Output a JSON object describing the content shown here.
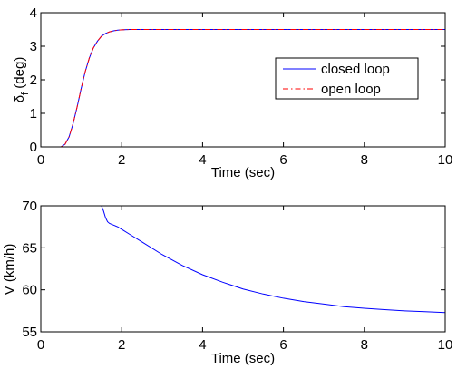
{
  "chart_data": [
    {
      "type": "line",
      "xlabel": "Time (sec)",
      "ylabel": "δ_f (deg)",
      "ylabel_main": "δ",
      "ylabel_sub": "f",
      "ylabel_rest": " (deg)",
      "xlim": [
        0,
        10
      ],
      "ylim": [
        0,
        4
      ],
      "xticks": [
        0,
        2,
        4,
        6,
        8,
        10
      ],
      "yticks": [
        0,
        1,
        2,
        3,
        4
      ],
      "grid": false,
      "legend": {
        "position": "right",
        "entries": [
          "closed loop",
          "open loop"
        ]
      },
      "series": [
        {
          "name": "closed loop",
          "color": "#0000ff",
          "style": "solid",
          "x": [
            0,
            0.5,
            0.6,
            0.7,
            0.8,
            0.9,
            1.0,
            1.1,
            1.2,
            1.3,
            1.4,
            1.5,
            1.6,
            1.7,
            1.8,
            1.9,
            2.0,
            2.2,
            2.5,
            3.0,
            10
          ],
          "y": [
            0,
            0,
            0.08,
            0.3,
            0.7,
            1.2,
            1.75,
            2.25,
            2.65,
            2.95,
            3.15,
            3.3,
            3.38,
            3.43,
            3.46,
            3.48,
            3.49,
            3.5,
            3.5,
            3.5,
            3.5
          ]
        },
        {
          "name": "open loop",
          "color": "#ff0000",
          "style": "dashdot",
          "x": [
            0,
            0.5,
            0.6,
            0.7,
            0.8,
            0.9,
            1.0,
            1.1,
            1.2,
            1.3,
            1.4,
            1.5,
            1.6,
            1.7,
            1.8,
            1.9,
            2.0,
            2.2,
            2.5,
            3.0,
            10
          ],
          "y": [
            0,
            0,
            0.08,
            0.3,
            0.7,
            1.2,
            1.75,
            2.25,
            2.65,
            2.95,
            3.15,
            3.3,
            3.38,
            3.43,
            3.46,
            3.48,
            3.49,
            3.5,
            3.5,
            3.5,
            3.5
          ]
        }
      ]
    },
    {
      "type": "line",
      "xlabel": "Time (sec)",
      "ylabel": "V (km/h)",
      "xlim": [
        0,
        10
      ],
      "ylim": [
        55,
        70
      ],
      "xticks": [
        0,
        2,
        4,
        6,
        8,
        10
      ],
      "yticks": [
        55,
        60,
        65,
        70
      ],
      "grid": false,
      "series": [
        {
          "color": "#0000ff",
          "style": "solid",
          "x": [
            0,
            1.5,
            1.55,
            1.6,
            1.65,
            1.7,
            1.8,
            1.9,
            2.0,
            2.2,
            2.5,
            3.0,
            3.5,
            4.0,
            4.5,
            5.0,
            5.5,
            6.0,
            6.5,
            7.0,
            7.5,
            8.0,
            8.5,
            9.0,
            9.5,
            10
          ],
          "y": [
            70,
            70,
            69.4,
            68.6,
            68.1,
            67.9,
            67.7,
            67.5,
            67.2,
            66.6,
            65.7,
            64.2,
            62.9,
            61.8,
            60.9,
            60.1,
            59.5,
            59.0,
            58.6,
            58.3,
            58.0,
            57.8,
            57.65,
            57.5,
            57.4,
            57.3
          ]
        },
        {
          "color": "#ff0000",
          "style": "dashdot",
          "x": [
            0,
            10
          ],
          "y": [
            70,
            70
          ]
        }
      ]
    }
  ]
}
